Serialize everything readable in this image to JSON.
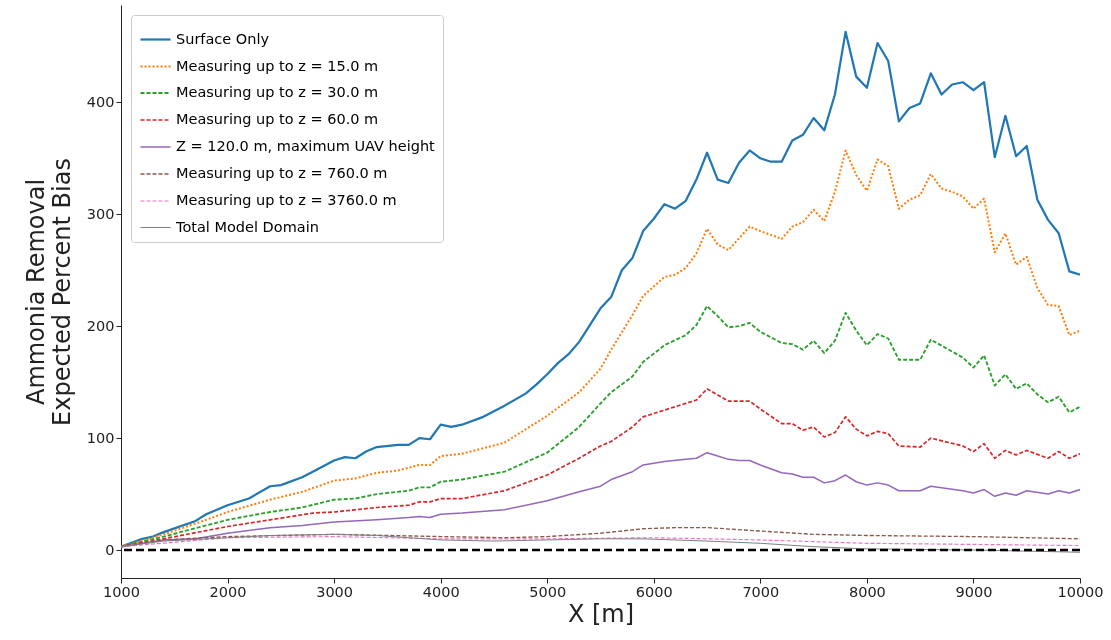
{
  "chart_data": {
    "type": "line",
    "xlabel": "X [m]",
    "ylabel": "Ammonia Removal\nExpected Percent Bias",
    "xlim": [
      1000,
      10000
    ],
    "xticks": [
      1000,
      2000,
      3000,
      4000,
      5000,
      6000,
      7000,
      8000,
      9000,
      10000
    ],
    "ylim": [
      -25,
      487
    ],
    "yticks": [
      0,
      100,
      200,
      300,
      400
    ],
    "grid": false,
    "legend": "top left",
    "ref_lines": [
      {
        "axis": "y",
        "value": 0,
        "color": "#000000",
        "line_style": "dashed"
      }
    ],
    "series": [
      {
        "name": "Surface Only",
        "color": "#1f77b4",
        "line_style": "solid",
        "x": [
          1000,
          1200,
          1300,
          1400,
          1700,
          1800,
          2000,
          2200,
          2400,
          2500,
          2700,
          2800,
          3000,
          3100,
          3200,
          3300,
          3400,
          3600,
          3700,
          3800,
          3900,
          4000,
          4100,
          4200,
          4400,
          4600,
          4800,
          4900,
          5000,
          5100,
          5200,
          5300,
          5500,
          5600,
          5700,
          5800,
          5900,
          6000,
          6100,
          6200,
          6300,
          6400,
          6500,
          6600,
          6700,
          6800,
          6900,
          7000,
          7100,
          7200,
          7300,
          7400,
          7500,
          7600,
          7700,
          7800,
          7900,
          8000,
          8100,
          8200,
          8300,
          8400,
          8500,
          8600,
          8700,
          8800,
          8900,
          9000,
          9100,
          9200,
          9300,
          9400,
          9500,
          9600,
          9700,
          9800,
          9900,
          10000
        ],
        "values": [
          3,
          10,
          12,
          16,
          26,
          32,
          40,
          46,
          57,
          58,
          65,
          70,
          80,
          83,
          82,
          88,
          92,
          94,
          94,
          100,
          99,
          112,
          110,
          112,
          119,
          129,
          140,
          148,
          157,
          167,
          175,
          186,
          216,
          226,
          250,
          261,
          285,
          296,
          309,
          305,
          312,
          331,
          355,
          331,
          328,
          346,
          357,
          350,
          347,
          347,
          366,
          371,
          386,
          375,
          407,
          463,
          423,
          413,
          453,
          437,
          383,
          395,
          399,
          426,
          407,
          416,
          418,
          411,
          418,
          351,
          388,
          352,
          361,
          313,
          295,
          283,
          249,
          246
        ]
      },
      {
        "name": "Measuring up to z = 15.0 m",
        "color": "#ff7f0e",
        "line_style": "dotted",
        "x": [
          1000,
          1400,
          1800,
          2000,
          2400,
          2700,
          3000,
          3200,
          3400,
          3600,
          3800,
          3900,
          4000,
          4200,
          4600,
          5000,
          5300,
          5500,
          5600,
          5800,
          5900,
          6100,
          6200,
          6300,
          6400,
          6500,
          6600,
          6700,
          6900,
          7000,
          7200,
          7300,
          7400,
          7500,
          7600,
          7700,
          7800,
          7900,
          8000,
          8100,
          8200,
          8300,
          8400,
          8500,
          8600,
          8700,
          8800,
          8900,
          9000,
          9100,
          9200,
          9300,
          9400,
          9500,
          9600,
          9700,
          9800,
          9900,
          10000
        ],
        "values": [
          3,
          14,
          27,
          34,
          45,
          52,
          62,
          64,
          69,
          71,
          76,
          76,
          84,
          86,
          96,
          120,
          141,
          162,
          179,
          210,
          227,
          244,
          246,
          252,
          265,
          287,
          273,
          268,
          289,
          285,
          278,
          289,
          293,
          304,
          294,
          320,
          357,
          335,
          321,
          349,
          343,
          305,
          313,
          317,
          336,
          323,
          320,
          316,
          305,
          314,
          266,
          283,
          255,
          262,
          234,
          219,
          218,
          192,
          196
        ]
      },
      {
        "name": "Measuring up to z = 30.0 m",
        "color": "#2ca02c",
        "line_style": "dashed",
        "x": [
          1000,
          1400,
          2000,
          2400,
          2700,
          3000,
          3200,
          3400,
          3700,
          3800,
          3900,
          4000,
          4200,
          4600,
          5000,
          5300,
          5500,
          5600,
          5800,
          5900,
          6100,
          6300,
          6400,
          6500,
          6600,
          6700,
          6800,
          6900,
          7000,
          7200,
          7300,
          7400,
          7500,
          7600,
          7700,
          7800,
          7900,
          8000,
          8100,
          8200,
          8300,
          8500,
          8600,
          8900,
          9000,
          9100,
          9200,
          9300,
          9400,
          9500,
          9600,
          9700,
          9800,
          9900,
          10000
        ],
        "values": [
          3,
          12,
          27,
          34,
          38,
          45,
          46,
          50,
          53,
          56,
          56,
          61,
          63,
          70,
          87,
          110,
          131,
          141,
          155,
          168,
          183,
          192,
          201,
          218,
          209,
          199,
          200,
          203,
          195,
          185,
          184,
          179,
          187,
          176,
          187,
          212,
          196,
          183,
          193,
          189,
          170,
          170,
          188,
          172,
          163,
          174,
          147,
          157,
          144,
          149,
          139,
          132,
          137,
          123,
          128
        ]
      },
      {
        "name": "Measuring up to z = 60.0 m",
        "color": "#d62728",
        "line_style": "dashed",
        "x": [
          1000,
          1400,
          2000,
          2400,
          2800,
          3000,
          3400,
          3700,
          3800,
          3900,
          4000,
          4200,
          4600,
          5000,
          5300,
          5500,
          5600,
          5800,
          5900,
          6100,
          6300,
          6400,
          6500,
          6700,
          6900,
          7000,
          7200,
          7300,
          7400,
          7500,
          7600,
          7700,
          7800,
          7900,
          8000,
          8100,
          8200,
          8300,
          8500,
          8600,
          8900,
          9000,
          9100,
          9200,
          9300,
          9400,
          9500,
          9700,
          9800,
          9900,
          10000
        ],
        "values": [
          3,
          10,
          21,
          27,
          33,
          34,
          38,
          40,
          43,
          43,
          46,
          46,
          53,
          67,
          82,
          93,
          97,
          110,
          119,
          125,
          131,
          134,
          144,
          133,
          133,
          126,
          113,
          113,
          107,
          110,
          101,
          105,
          119,
          108,
          102,
          106,
          104,
          93,
          92,
          100,
          93,
          88,
          95,
          82,
          89,
          85,
          89,
          82,
          88,
          82,
          86
        ]
      },
      {
        "name": "Z = 120.0 m, maximum UAV height",
        "color": "#9467bd",
        "line_style": "solid",
        "x": [
          1000,
          1400,
          1700,
          2000,
          2400,
          2700,
          3000,
          3400,
          3700,
          3800,
          3900,
          4000,
          4200,
          4600,
          5000,
          5300,
          5500,
          5600,
          5800,
          5900,
          6100,
          6300,
          6400,
          6500,
          6600,
          6700,
          6800,
          6900,
          7000,
          7200,
          7300,
          7400,
          7500,
          7600,
          7700,
          7800,
          7900,
          8000,
          8100,
          8200,
          8300,
          8500,
          8600,
          8900,
          9000,
          9100,
          9200,
          9300,
          9400,
          9500,
          9700,
          9800,
          9900,
          10000
        ],
        "values": [
          3,
          9,
          10,
          15,
          20,
          22,
          25,
          27,
          29,
          30,
          29,
          32,
          33,
          36,
          44,
          52,
          57,
          63,
          70,
          76,
          79,
          81,
          82,
          87,
          84,
          81,
          80,
          80,
          76,
          69,
          68,
          65,
          65,
          60,
          62,
          67,
          61,
          58,
          60,
          58,
          53,
          53,
          57,
          53,
          51,
          54,
          48,
          51,
          49,
          53,
          50,
          53,
          51,
          54
        ]
      },
      {
        "name": "Measuring up to z = 760.0 m",
        "color": "#8c564b",
        "line_style": "dashed",
        "x": [
          1000,
          1400,
          2000,
          3000,
          4000,
          4600,
          5000,
          5500,
          5900,
          6200,
          6500,
          7000,
          7500,
          8000,
          9000,
          10000
        ],
        "values": [
          3,
          9,
          12,
          14,
          12,
          11,
          12,
          15,
          19,
          20,
          20,
          17,
          14,
          13,
          12,
          10
        ]
      },
      {
        "name": "Measuring up to z = 3760.0 m",
        "color": "#e377c2",
        "line_style": "dashed",
        "x": [
          1000,
          2000,
          3000,
          4000,
          5000,
          6000,
          7000,
          8000,
          9000,
          10000
        ],
        "values": [
          3,
          11,
          12,
          10,
          10,
          11,
          9,
          6,
          5,
          4
        ]
      },
      {
        "name": "Total Model Domain",
        "color": "#7f7f7f",
        "line_style": "solid",
        "x": [
          1000,
          1400,
          2000,
          2400,
          3000,
          3400,
          3700,
          4000,
          4500,
          5000,
          5500,
          5900,
          6500,
          7000,
          7500,
          8000,
          9000,
          10000
        ],
        "values": [
          3,
          8,
          11,
          13,
          14,
          13,
          11,
          9,
          8,
          9,
          10,
          10,
          8,
          6,
          3,
          1,
          0,
          -2
        ]
      }
    ]
  }
}
